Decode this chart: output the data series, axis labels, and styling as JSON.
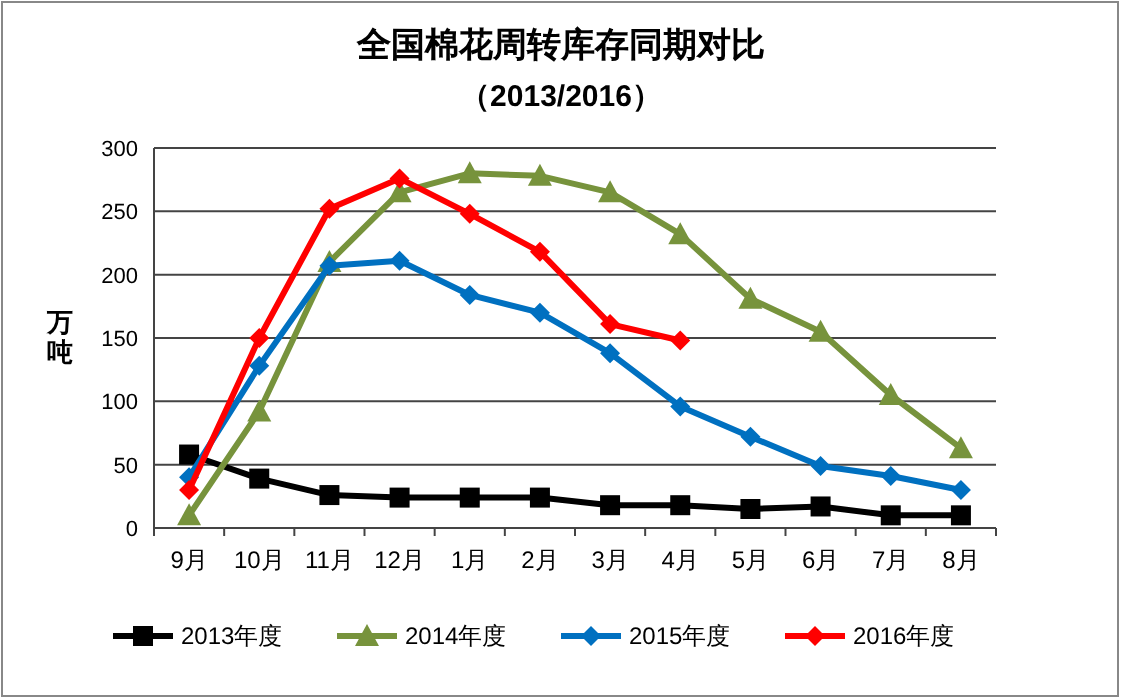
{
  "chart_data": {
    "type": "line",
    "title": "全国棉花周转库存同期对比",
    "subtitle": "（2013/2016）",
    "ylabel": "万吨",
    "categories": [
      "9月",
      "10月",
      "11月",
      "12月",
      "1月",
      "2月",
      "3月",
      "4月",
      "5月",
      "6月",
      "7月",
      "8月"
    ],
    "series": [
      {
        "name": "2013年度",
        "color": "#000000",
        "marker": "square",
        "values": [
          58,
          39,
          26,
          24,
          24,
          24,
          18,
          18,
          15,
          17,
          10,
          10
        ]
      },
      {
        "name": "2014年度",
        "color": "#77933c",
        "marker": "triangle",
        "values": [
          10,
          92,
          210,
          265,
          280,
          278,
          265,
          232,
          181,
          155,
          105,
          63
        ]
      },
      {
        "name": "2015年度",
        "color": "#0070c0",
        "marker": "diamond",
        "values": [
          40,
          128,
          207,
          211,
          184,
          170,
          138,
          96,
          72,
          49,
          41,
          30
        ]
      },
      {
        "name": "2016年度",
        "color": "#ff0000",
        "marker": "diamond",
        "values": [
          30,
          150,
          252,
          276,
          248,
          218,
          161,
          148,
          null,
          null,
          null,
          null
        ]
      }
    ],
    "ylim": [
      0,
      300
    ],
    "yticks": [
      0,
      50,
      100,
      150,
      200,
      250,
      300
    ],
    "grid": "y",
    "legend": "bottom"
  }
}
